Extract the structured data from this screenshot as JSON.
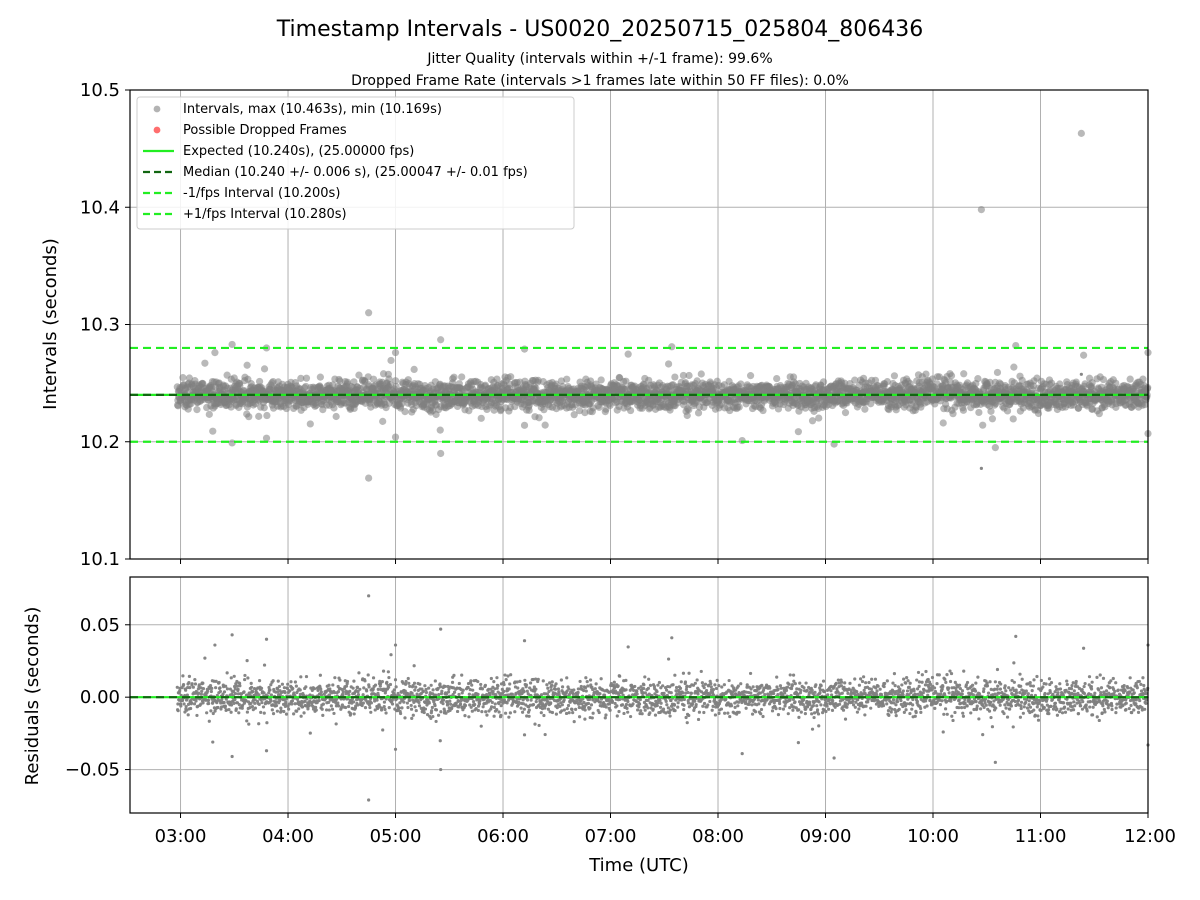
{
  "chart_data": {
    "type": "scatter",
    "title": "Timestamp Intervals - US0020_20250715_025804_806436",
    "subtitles": [
      "Jitter Quality (intervals within +/-1 frame): 99.6%",
      "Dropped Frame Rate (intervals >1 frames late within 50 FF files): 0.0%"
    ],
    "xlabel": "Time (UTC)",
    "x_tick_labels": [
      "03:00",
      "04:00",
      "05:00",
      "06:00",
      "07:00",
      "08:00",
      "09:00",
      "10:00",
      "11:00",
      "12:00"
    ],
    "x_tick_hours": [
      3,
      4,
      5,
      6,
      7,
      8,
      9,
      10,
      11,
      12
    ],
    "xlim_hours": [
      2.53,
      12.0
    ],
    "grid": true,
    "top_panel": {
      "ylabel": "Intervals (seconds)",
      "ylim": [
        10.1,
        10.5
      ],
      "y_ticks": [
        10.1,
        10.2,
        10.3,
        10.4,
        10.5
      ],
      "y_tick_labels": [
        "10.1",
        "10.2",
        "10.3",
        "10.4",
        "10.5"
      ],
      "expected": 10.24,
      "median": 10.24,
      "lower_bound": 10.2,
      "upper_bound": 10.28,
      "max": 10.463,
      "min": 10.169,
      "point_count": 3270,
      "cadence_seconds": 10.24,
      "start_hour": 2.97,
      "end_hour": 12.0,
      "typical_spread": 0.006,
      "notable_points": [
        {
          "x": 11.38,
          "y": 10.463
        },
        {
          "x": 10.45,
          "y": 10.398
        },
        {
          "x": 4.75,
          "y": 10.31
        },
        {
          "x": 4.75,
          "y": 10.169
        },
        {
          "x": 5.42,
          "y": 10.287
        },
        {
          "x": 5.42,
          "y": 10.19
        },
        {
          "x": 3.48,
          "y": 10.283
        },
        {
          "x": 3.48,
          "y": 10.199
        },
        {
          "x": 10.77,
          "y": 10.282
        },
        {
          "x": 10.58,
          "y": 10.195
        },
        {
          "x": 7.57,
          "y": 10.281
        },
        {
          "x": 12.0,
          "y": 10.276
        },
        {
          "x": 12.0,
          "y": 10.207
        },
        {
          "x": 5.0,
          "y": 10.276
        },
        {
          "x": 5.0,
          "y": 10.204
        },
        {
          "x": 3.8,
          "y": 10.28
        },
        {
          "x": 3.8,
          "y": 10.203
        },
        {
          "x": 6.2,
          "y": 10.279
        },
        {
          "x": 6.2,
          "y": 10.214
        },
        {
          "x": 9.08,
          "y": 10.198
        },
        {
          "x": 3.32,
          "y": 10.276
        },
        {
          "x": 3.3,
          "y": 10.209
        }
      ]
    },
    "bottom_panel": {
      "ylabel": "Residuals (seconds)",
      "ylim": [
        -0.08,
        0.083
      ],
      "y_ticks": [
        -0.05,
        0.0,
        0.05
      ],
      "y_tick_labels": [
        "−0.05",
        "0.00",
        "0.05"
      ],
      "zero_line": 0.0
    },
    "legend": {
      "position": "top-left",
      "entries": [
        {
          "label": "Intervals, max (10.463s), min (10.169s)",
          "marker": "circle",
          "color": "#808080"
        },
        {
          "label": "Possible Dropped Frames",
          "marker": "circle",
          "color": "#ff5555"
        },
        {
          "label": "Expected (10.240s), (25.00000 fps)",
          "marker": "solid-line",
          "color": "#22ee22"
        },
        {
          "label": "Median (10.240 +/- 0.006 s), (25.00047 +/- 0.01 fps)",
          "marker": "dashed-line",
          "color": "#116611"
        },
        {
          "label": "-1/fps Interval (10.200s)",
          "marker": "dashed-line",
          "color": "#22ee22"
        },
        {
          "label": "+1/fps Interval (10.280s)",
          "marker": "dashed-line",
          "color": "#22ee22"
        }
      ]
    },
    "colors": {
      "points": "#808080",
      "dropped": "#ff5555",
      "expected": "#22ee22",
      "median": "#116611",
      "bounds": "#22ee22"
    }
  }
}
